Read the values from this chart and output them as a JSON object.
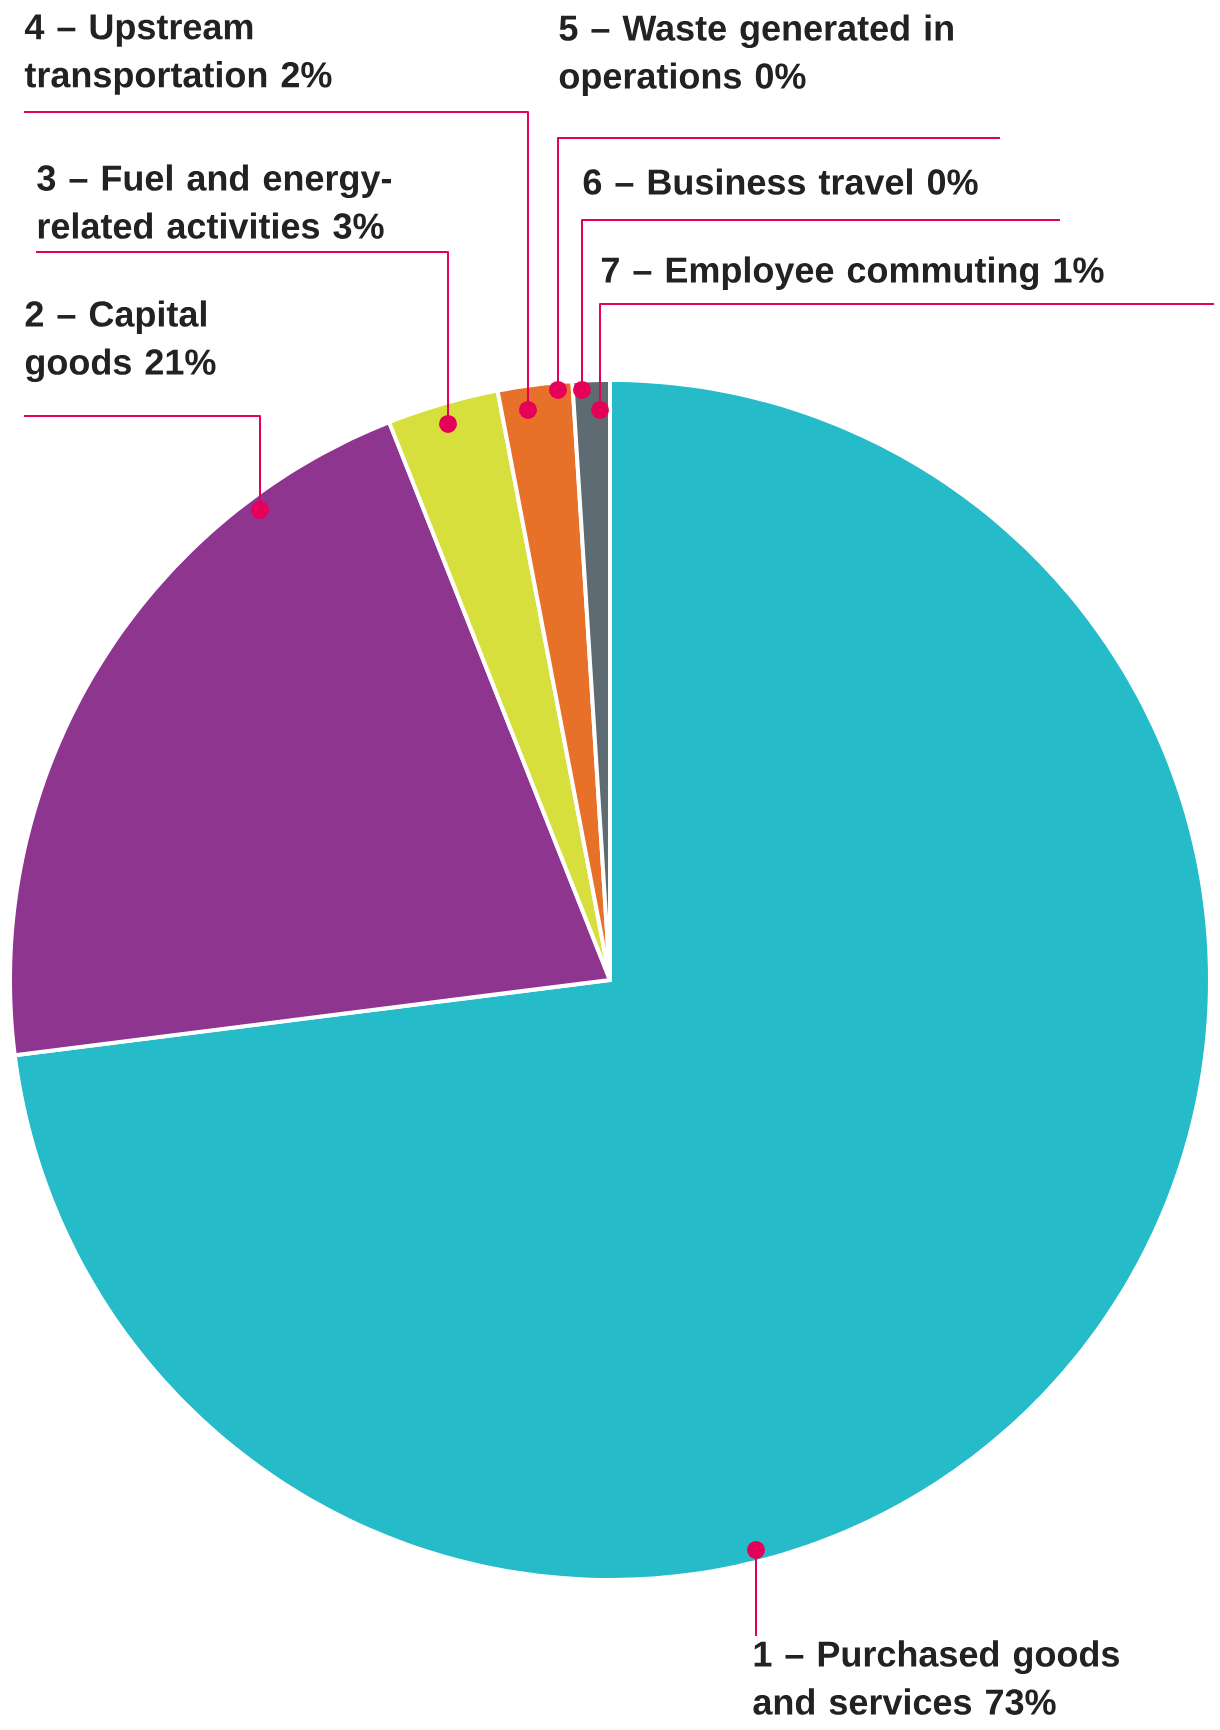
{
  "chart_data": {
    "type": "pie",
    "categories": [
      "1 – Purchased goods and services",
      "2 – Capital goods",
      "3 – Fuel and energy-related activities",
      "4 – Upstream transportation",
      "5 – Waste generated in operations",
      "6 – Business travel",
      "7 – Employee commuting"
    ],
    "values": [
      73,
      21,
      3,
      2,
      0,
      0,
      1
    ],
    "value_labels": [
      "73%",
      "21%",
      "3%",
      "2%",
      "0%",
      "0%",
      "1%"
    ],
    "colors": [
      "#26bbc9",
      "#8e3590",
      "#d7df3c",
      "#e8712a",
      "#b0b0b0",
      "#909090",
      "#5e6b72"
    ]
  }
}
